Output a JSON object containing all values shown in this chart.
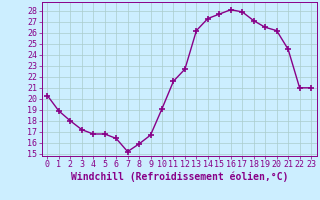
{
  "x": [
    0,
    1,
    2,
    3,
    4,
    5,
    6,
    7,
    8,
    9,
    10,
    11,
    12,
    13,
    14,
    15,
    16,
    17,
    18,
    19,
    20,
    21,
    22,
    23
  ],
  "y": [
    20.3,
    18.9,
    18.0,
    17.2,
    16.8,
    16.8,
    16.4,
    15.2,
    15.9,
    16.7,
    19.1,
    21.6,
    22.7,
    26.2,
    27.3,
    27.7,
    28.1,
    27.9,
    27.1,
    26.5,
    26.2,
    24.5,
    21.0,
    21.0
  ],
  "line_color": "#880088",
  "marker": "+",
  "marker_size": 4,
  "marker_lw": 1.2,
  "bg_color": "#cceeff",
  "grid_color": "#aacccc",
  "xlabel": "Windchill (Refroidissement éolien,°C)",
  "ylim": [
    14.8,
    28.8
  ],
  "xlim": [
    -0.5,
    23.5
  ],
  "yticks": [
    15,
    16,
    17,
    18,
    19,
    20,
    21,
    22,
    23,
    24,
    25,
    26,
    27,
    28
  ],
  "xticks": [
    0,
    1,
    2,
    3,
    4,
    5,
    6,
    7,
    8,
    9,
    10,
    11,
    12,
    13,
    14,
    15,
    16,
    17,
    18,
    19,
    20,
    21,
    22,
    23
  ],
  "tick_color": "#880088",
  "tick_fontsize": 6.0,
  "xlabel_fontsize": 7.0,
  "line_width": 1.0
}
